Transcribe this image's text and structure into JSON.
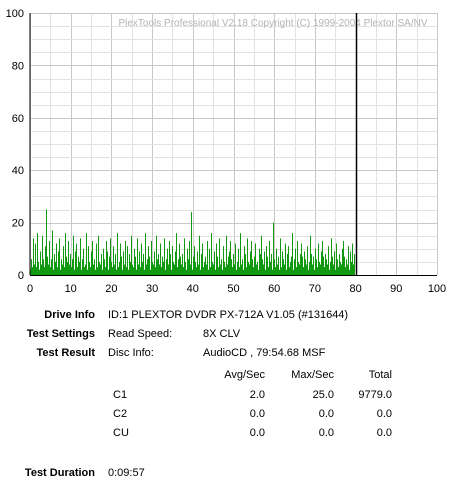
{
  "chart_data": {
    "type": "bar",
    "watermark": "PlexTools Professional V2.18 Copyright (C) 1999-2004 Plextor SA/NV",
    "x_ticks": [
      "0",
      "10",
      "20",
      "30",
      "40",
      "50",
      "60",
      "70",
      "80",
      "90",
      "100"
    ],
    "y_ticks": [
      "0",
      "20",
      "40",
      "60",
      "80",
      "100"
    ],
    "xlim": [
      0,
      100
    ],
    "ylim": [
      0,
      100
    ],
    "grid": true,
    "disc_end_marker": 80,
    "series": [
      {
        "color": "#119911",
        "x_range": [
          0,
          79.9
        ],
        "values": [
          2,
          6,
          3,
          14,
          4,
          8,
          12,
          3,
          16,
          5,
          2,
          9,
          4,
          15,
          6,
          3,
          11,
          2,
          25,
          7,
          4,
          13,
          3,
          6,
          17,
          2,
          8,
          5,
          12,
          4,
          3,
          9,
          14,
          2,
          6,
          4,
          11,
          3,
          16,
          7,
          2,
          5,
          13,
          4,
          8,
          3,
          6,
          15,
          2,
          9,
          4,
          12,
          3,
          7,
          5,
          14,
          2,
          6,
          10,
          3,
          4,
          16,
          8,
          2,
          11,
          5,
          3,
          9,
          13,
          4,
          6,
          2,
          12,
          7,
          3,
          15,
          5,
          4,
          8,
          2,
          10,
          6,
          3,
          13,
          4,
          9,
          2,
          7,
          14,
          5,
          3,
          11,
          4,
          8,
          2,
          6,
          16,
          3,
          5,
          12,
          7,
          2,
          9,
          4,
          13,
          3,
          6,
          11,
          2,
          8,
          5,
          15,
          4,
          3,
          10,
          7,
          2,
          14,
          6,
          4,
          9,
          3,
          12,
          5,
          8,
          2,
          16,
          4,
          6,
          3,
          11,
          7,
          2,
          13,
          5,
          4,
          9,
          3,
          15,
          6,
          2,
          8,
          4,
          12,
          3,
          7,
          5,
          14,
          2,
          6,
          10,
          4,
          3,
          13,
          8,
          2,
          11,
          5,
          4,
          9,
          16,
          3,
          6,
          2,
          12,
          7,
          4,
          8,
          3,
          14,
          5,
          2,
          10,
          6,
          3,
          13,
          4,
          24,
          2,
          7,
          11,
          5,
          3,
          9,
          4,
          15,
          6,
          2,
          8,
          12,
          3,
          5,
          7,
          4,
          13,
          2,
          6,
          10,
          3,
          16,
          5,
          4,
          9,
          2,
          12,
          7,
          3,
          8,
          14,
          4,
          6,
          2,
          11,
          5,
          3,
          15,
          4,
          7,
          2,
          9,
          13,
          6,
          3,
          8,
          4,
          12,
          2,
          5,
          10,
          3,
          7,
          16,
          4,
          6,
          2,
          11,
          8,
          3,
          14,
          5,
          4,
          9,
          2,
          13,
          6,
          3,
          7,
          12,
          4,
          5,
          2,
          10,
          8,
          3,
          15,
          6,
          4,
          9,
          2,
          11,
          7,
          3,
          13,
          5,
          4,
          8,
          2,
          20,
          6,
          3,
          10,
          4,
          7,
          2,
          14,
          5,
          3,
          9,
          6,
          4,
          12,
          2,
          8,
          11,
          3,
          5,
          7,
          4,
          16,
          2,
          6,
          10,
          3,
          13,
          5,
          4,
          8,
          2,
          12,
          7,
          3,
          9,
          6,
          4,
          11,
          2,
          5,
          15,
          3,
          8,
          4,
          7,
          2,
          10,
          6,
          3,
          12,
          5,
          4,
          9,
          2,
          13,
          7,
          3,
          8,
          6,
          4,
          11,
          2,
          5,
          14,
          3,
          7,
          4,
          9,
          2,
          12,
          6,
          3,
          8,
          5,
          4,
          10,
          2,
          13,
          7,
          3,
          6,
          4,
          11,
          2,
          9,
          5,
          3,
          12,
          4,
          8
        ]
      }
    ]
  },
  "info": {
    "drive_info_label": "Drive Info",
    "drive_info_value": "ID:1 PLEXTOR DVDR PX-712A V1.05 (#131644)",
    "test_settings_label": "Test Settings",
    "read_speed_label": "Read Speed:",
    "read_speed_value": "8X CLV",
    "test_result_label": "Test Result",
    "disc_info_label": "Disc Info:",
    "disc_info_value": "AudioCD , 79:54.68 MSF",
    "test_duration_label": "Test Duration",
    "test_duration_value": "0:09:57"
  },
  "results": {
    "headers": [
      "Avg/Sec",
      "Max/Sec",
      "Total"
    ],
    "rows": [
      {
        "name": "C1",
        "avg": "2.0",
        "max": "25.0",
        "total": "9779.0"
      },
      {
        "name": "C2",
        "avg": "0.0",
        "max": "0.0",
        "total": "0.0"
      },
      {
        "name": "CU",
        "avg": "0.0",
        "max": "0.0",
        "total": "0.0"
      }
    ]
  }
}
